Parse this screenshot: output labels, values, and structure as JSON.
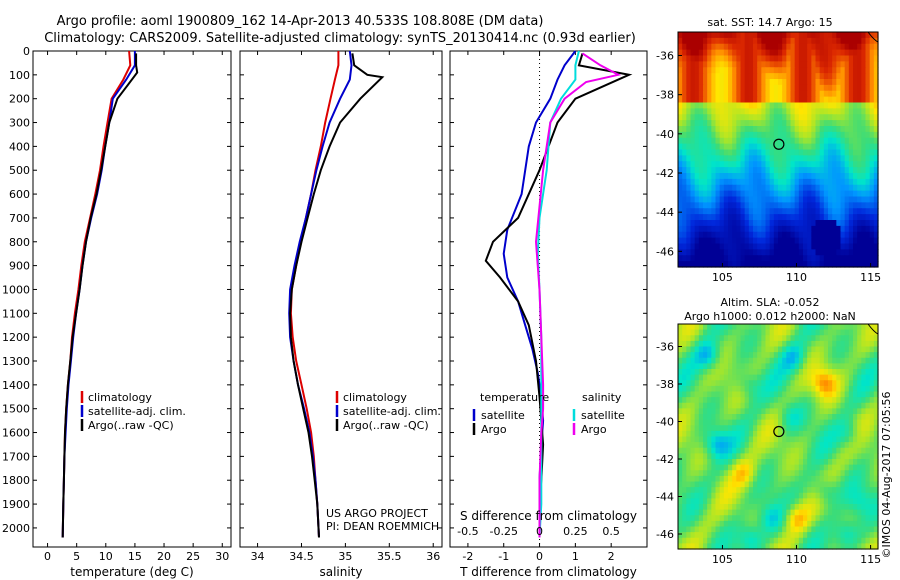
{
  "header": {
    "line1": "Argo profile: aoml 1900809_162 14-Apr-2013 40.533S 108.808E (DM data)",
    "line2": "Climatology: CARS2009. Satellite-adjusted climatology: synTS_20130414.nc (0.93d earlier)"
  },
  "colors": {
    "climatology": "#dd0000",
    "satellite": "#0000cc",
    "argo": "#000000",
    "sal_satellite": "#00dddd",
    "sal_argo": "#ee00ee"
  },
  "chart_data": [
    {
      "type": "line",
      "name": "temperature-profile",
      "xlabel": "temperature (deg C)",
      "ylabel": "",
      "xlim": [
        -2.5,
        31.5
      ],
      "ylim": [
        2080,
        0
      ],
      "x_ticks": [
        0,
        5,
        10,
        15,
        20,
        25,
        30
      ],
      "y_ticks": [
        0,
        100,
        200,
        300,
        400,
        500,
        600,
        700,
        800,
        900,
        1000,
        1100,
        1200,
        1300,
        1400,
        1500,
        1600,
        1700,
        1800,
        1900,
        2000
      ],
      "legend": [
        "climatology",
        "satellite-adj. clim.",
        "Argo(..raw -QC)"
      ],
      "series": [
        {
          "name": "climatology",
          "color": "#dd0000",
          "x": [
            14.0,
            14.2,
            13.0,
            11.0,
            10.3,
            9.6,
            9.0,
            8.2,
            7.3,
            6.4,
            5.8,
            5.3,
            4.7,
            4.2,
            3.9,
            3.5,
            3.2,
            3.0,
            2.9,
            2.8,
            2.7,
            2.6
          ],
          "y": [
            0,
            60,
            120,
            200,
            300,
            400,
            500,
            600,
            700,
            800,
            900,
            1000,
            1100,
            1200,
            1300,
            1400,
            1500,
            1600,
            1700,
            1800,
            1900,
            2040
          ]
        },
        {
          "name": "satellite-adj. clim.",
          "color": "#0000cc",
          "x": [
            15.0,
            15.0,
            13.5,
            11.2,
            10.6,
            9.9,
            9.3,
            8.5,
            7.5,
            6.6,
            6.0,
            5.5,
            4.9,
            4.4,
            4.0,
            3.6,
            3.3,
            3.1,
            2.9,
            2.8,
            2.7,
            2.6
          ],
          "y": [
            0,
            60,
            120,
            200,
            300,
            400,
            500,
            600,
            700,
            800,
            900,
            1000,
            1100,
            1200,
            1300,
            1400,
            1500,
            1600,
            1700,
            1800,
            1900,
            2040
          ]
        },
        {
          "name": "Argo(..raw -QC)",
          "color": "#000000",
          "x": [
            15.2,
            15.2,
            15.4,
            14.8,
            12.0,
            10.6,
            9.9,
            9.2,
            8.4,
            7.4,
            6.6,
            6.0,
            5.5,
            4.9,
            4.3,
            3.9,
            3.5,
            3.2,
            3.0,
            2.9,
            2.8,
            2.7,
            2.6
          ],
          "y": [
            10,
            60,
            90,
            110,
            200,
            300,
            400,
            500,
            600,
            700,
            800,
            900,
            1000,
            1100,
            1200,
            1300,
            1400,
            1500,
            1600,
            1700,
            1800,
            1900,
            2040
          ]
        }
      ]
    },
    {
      "type": "line",
      "name": "salinity-profile",
      "xlabel": "salinity",
      "xlim": [
        33.8,
        36.1
      ],
      "ylim": [
        2080,
        0
      ],
      "x_ticks": [
        34,
        34.5,
        35,
        35.5,
        36
      ],
      "legend": [
        "climatology",
        "satellite-adj. clim.",
        "Argo(..raw -QC)"
      ],
      "annotation": [
        "US ARGO PROJECT",
        "PI: DEAN ROEMMICH"
      ],
      "series": [
        {
          "name": "climatology",
          "color": "#dd0000",
          "x": [
            34.92,
            34.92,
            34.88,
            34.83,
            34.77,
            34.72,
            34.66,
            34.61,
            34.55,
            34.49,
            34.44,
            34.39,
            34.38,
            34.4,
            34.44,
            34.5,
            34.56,
            34.61,
            34.64,
            34.66,
            34.68,
            34.7
          ],
          "y": [
            0,
            60,
            120,
            200,
            300,
            400,
            500,
            600,
            700,
            800,
            900,
            1000,
            1100,
            1200,
            1300,
            1400,
            1500,
            1600,
            1700,
            1800,
            1900,
            2040
          ]
        },
        {
          "name": "satellite-adj. clim.",
          "color": "#0000cc",
          "x": [
            35.05,
            35.07,
            35.05,
            34.94,
            34.82,
            34.74,
            34.67,
            34.61,
            34.55,
            34.48,
            34.42,
            34.37,
            34.36,
            34.37,
            34.41,
            34.46,
            34.53,
            34.59,
            34.63,
            34.66,
            34.68,
            34.7
          ],
          "y": [
            0,
            60,
            120,
            200,
            300,
            400,
            500,
            600,
            700,
            800,
            900,
            1000,
            1100,
            1200,
            1300,
            1400,
            1500,
            1600,
            1700,
            1800,
            1900,
            2040
          ]
        },
        {
          "name": "Argo(..raw -QC)",
          "color": "#000000",
          "x": [
            35.08,
            35.1,
            35.25,
            35.42,
            35.17,
            34.94,
            34.82,
            34.72,
            34.64,
            34.57,
            34.5,
            34.44,
            34.39,
            34.37,
            34.38,
            34.41,
            34.46,
            34.52,
            34.58,
            34.62,
            34.65,
            34.68,
            34.7
          ],
          "y": [
            10,
            60,
            100,
            110,
            200,
            300,
            400,
            500,
            600,
            700,
            800,
            900,
            1000,
            1100,
            1200,
            1300,
            1400,
            1500,
            1600,
            1700,
            1800,
            1900,
            2040
          ]
        }
      ]
    },
    {
      "type": "line",
      "name": "difference-profile",
      "xlabel": "T difference from climatology",
      "xlabel_top": "S difference from climatology",
      "xlim": [
        -2.5,
        3.0
      ],
      "ylim": [
        2080,
        0
      ],
      "x_ticks": [
        -2,
        -1,
        0,
        1,
        2
      ],
      "x_ticks_top": [
        "-0.5",
        "-0.25",
        "0",
        "0.25",
        "0.5"
      ],
      "x_ticks_top_pos": [
        -2,
        -1,
        0,
        1,
        2
      ],
      "legend_temperature": {
        "title": "temperature",
        "items": [
          "satellite",
          "Argo"
        ]
      },
      "legend_salinity": {
        "title": "salinity",
        "items": [
          "satellite",
          "Argo"
        ]
      },
      "series": [
        {
          "name": "temperature satellite",
          "color": "#0000cc",
          "x": [
            1.0,
            0.7,
            0.5,
            0.3,
            -0.1,
            -0.3,
            -0.5,
            -0.9,
            -1.0,
            -0.9,
            -0.6,
            -0.4,
            -0.2,
            -0.05,
            0.05,
            0.1,
            0.05,
            0.0,
            0.0,
            0.0
          ],
          "y": [
            0,
            60,
            120,
            200,
            300,
            400,
            600,
            750,
            850,
            950,
            1050,
            1150,
            1250,
            1350,
            1450,
            1550,
            1650,
            1800,
            1900,
            2040
          ]
        },
        {
          "name": "temperature Argo",
          "color": "#000000",
          "x": [
            1.2,
            1.1,
            2.5,
            2.2,
            1.0,
            0.5,
            0.0,
            -0.6,
            -1.3,
            -1.5,
            -1.1,
            -0.6,
            -0.3,
            -0.1,
            0.0,
            0.05,
            0.1,
            0.05,
            0.0,
            0.0
          ],
          "y": [
            10,
            60,
            100,
            120,
            200,
            300,
            500,
            700,
            800,
            880,
            950,
            1050,
            1150,
            1300,
            1450,
            1550,
            1650,
            1800,
            1900,
            2040
          ]
        },
        {
          "name": "salinity satellite",
          "color": "#00dddd",
          "x": [
            1.1,
            1.0,
            1.0,
            0.6,
            0.3,
            0.2,
            0.0,
            -0.05,
            0.0,
            0.05,
            0.05,
            0.05,
            0.05,
            0.05,
            0.0
          ],
          "y": [
            0,
            60,
            120,
            200,
            300,
            500,
            700,
            850,
            1000,
            1200,
            1400,
            1550,
            1700,
            1900,
            2040
          ]
        },
        {
          "name": "salinity Argo",
          "color": "#ee00ee",
          "x": [
            1.2,
            1.7,
            2.2,
            1.3,
            0.7,
            0.3,
            0.1,
            -0.1,
            0.0,
            0.05,
            0.1,
            0.1,
            0.05,
            0.0,
            0.0
          ],
          "y": [
            10,
            60,
            100,
            130,
            200,
            300,
            500,
            800,
            1000,
            1200,
            1400,
            1500,
            1600,
            1800,
            2040
          ]
        }
      ]
    },
    {
      "type": "heatmap",
      "name": "sst-map",
      "title": "sat. SST: 14.7 Argo: 15",
      "x_ticks": [
        105,
        110,
        115
      ],
      "y_ticks": [
        -36,
        -38,
        -40,
        -42,
        -44,
        -46
      ],
      "xlim": [
        102.0,
        115.5
      ],
      "ylim": [
        -46.8,
        -34.8
      ],
      "marker": {
        "lon": 108.808,
        "lat": -40.533
      }
    },
    {
      "type": "heatmap",
      "name": "sla-map",
      "title": "Altim. SLA: -0.052",
      "subtitle": "Argo h1000: 0.012 h2000: NaN",
      "x_ticks": [
        105,
        110,
        115
      ],
      "y_ticks": [
        -36,
        -38,
        -40,
        -42,
        -44,
        -46
      ],
      "xlim": [
        102.0,
        115.5
      ],
      "ylim": [
        -46.8,
        -34.8
      ],
      "marker": {
        "lon": 108.808,
        "lat": -40.533
      }
    }
  ],
  "footer_stamp": "©IMOS 04-Aug-2017 07:05:56"
}
